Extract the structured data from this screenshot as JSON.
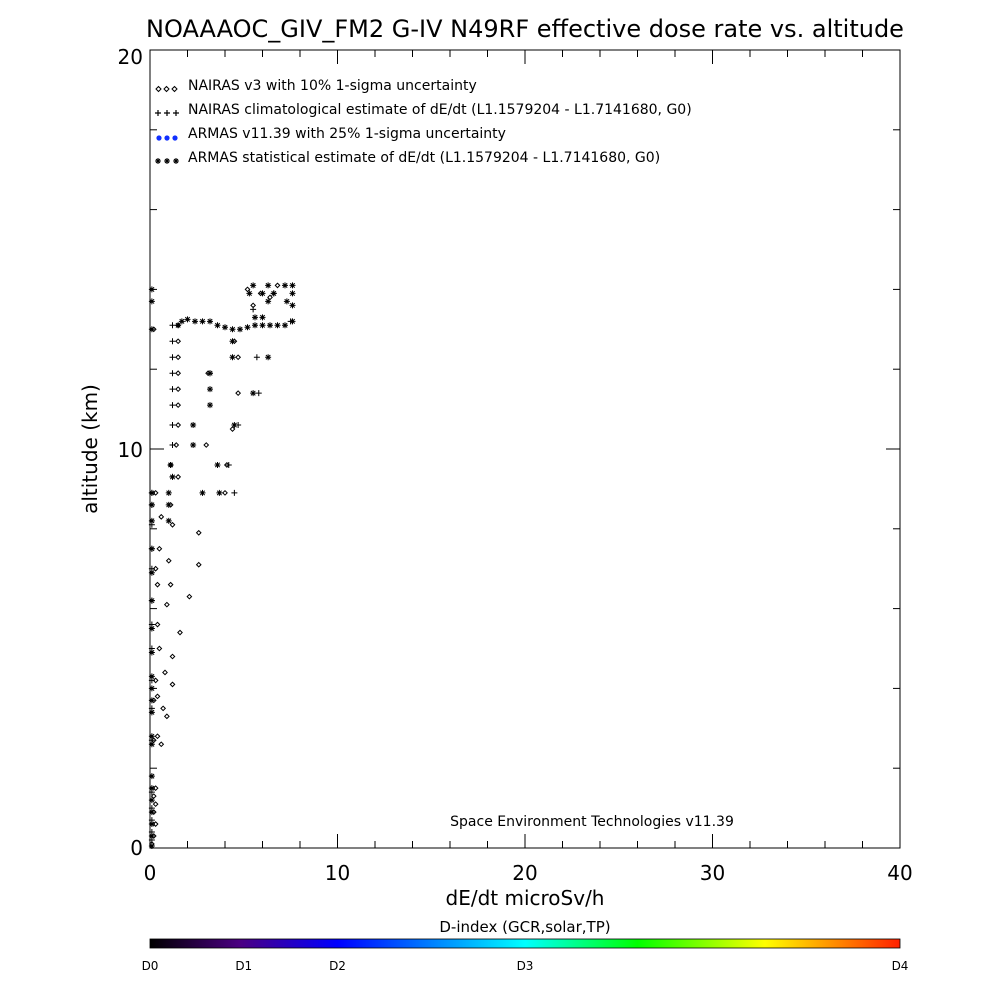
{
  "chart_data": {
    "type": "scatter",
    "title": "NOAAAOC_GIV_FM2 G-IV   N49RF  effective dose rate vs. altitude",
    "xlabel": "dE/dt microSv/h",
    "ylabel": "altitude (km)",
    "xlim": [
      0,
      40
    ],
    "ylim": [
      0,
      20
    ],
    "x_ticks": [
      "0",
      "10",
      "20",
      "30",
      "40"
    ],
    "y_ticks": [
      "0",
      "10",
      "20"
    ],
    "grid": false,
    "legend_position": "top-left",
    "credit": "Space Environment Technologies v11.39",
    "colorbar": {
      "title": "D-index (GCR,solar,TP)",
      "labels": [
        {
          "label": "D0",
          "value": 0
        },
        {
          "label": "D1",
          "value": 1
        },
        {
          "label": "D2",
          "value": 2
        },
        {
          "label": "D3",
          "value": 4
        },
        {
          "label": "D4",
          "value": 8
        }
      ],
      "range": [
        0,
        8
      ]
    },
    "series": [
      {
        "name": "NAIRAS v3 with 10% 1-sigma uncertainty",
        "marker": "diamond",
        "color": "#000000",
        "points": [
          [
            0.1,
            0.1
          ],
          [
            0.2,
            0.3
          ],
          [
            0.3,
            0.6
          ],
          [
            0.2,
            0.9
          ],
          [
            0.3,
            1.1
          ],
          [
            0.2,
            1.3
          ],
          [
            0.3,
            1.5
          ],
          [
            0.6,
            2.6
          ],
          [
            0.2,
            2.7
          ],
          [
            0.4,
            2.8
          ],
          [
            0.9,
            3.3
          ],
          [
            0.7,
            3.5
          ],
          [
            0.2,
            3.7
          ],
          [
            0.4,
            3.8
          ],
          [
            1.2,
            4.1
          ],
          [
            0.3,
            4.2
          ],
          [
            0.8,
            4.4
          ],
          [
            1.2,
            4.8
          ],
          [
            0.5,
            5.0
          ],
          [
            1.6,
            5.4
          ],
          [
            0.4,
            5.6
          ],
          [
            2.1,
            6.3
          ],
          [
            0.9,
            6.1
          ],
          [
            0.4,
            6.6
          ],
          [
            1.1,
            6.6
          ],
          [
            0.3,
            7.0
          ],
          [
            2.6,
            7.1
          ],
          [
            1.0,
            7.2
          ],
          [
            0.5,
            7.5
          ],
          [
            2.6,
            7.9
          ],
          [
            1.2,
            8.1
          ],
          [
            0.6,
            8.3
          ],
          [
            1.1,
            8.6
          ],
          [
            0.3,
            8.9
          ],
          [
            4.0,
            8.9
          ],
          [
            1.5,
            9.3
          ],
          [
            1.1,
            9.6
          ],
          [
            4.1,
            9.6
          ],
          [
            1.4,
            10.1
          ],
          [
            3.0,
            10.1
          ],
          [
            4.4,
            10.5
          ],
          [
            1.5,
            10.6
          ],
          [
            1.5,
            11.1
          ],
          [
            4.7,
            11.4
          ],
          [
            1.5,
            11.5
          ],
          [
            1.5,
            11.9
          ],
          [
            3.1,
            11.9
          ],
          [
            1.5,
            12.3
          ],
          [
            4.7,
            12.3
          ],
          [
            1.5,
            12.7
          ],
          [
            4.5,
            12.7
          ],
          [
            1.5,
            13.1
          ],
          [
            5.5,
            13.6
          ],
          [
            6.4,
            13.8
          ],
          [
            5.9,
            13.9
          ],
          [
            5.2,
            14.0
          ],
          [
            6.8,
            14.1
          ],
          [
            0.2,
            13.0
          ]
        ]
      },
      {
        "name": "NAIRAS climatological estimate of dE/dt (L1.1579204 - L1.7141680, G0)",
        "marker": "plus",
        "color": "#000000",
        "points": [
          [
            0.1,
            0.2
          ],
          [
            0.1,
            0.4
          ],
          [
            0.1,
            0.7
          ],
          [
            0.1,
            1.0
          ],
          [
            0.1,
            1.4
          ],
          [
            0.1,
            2.7
          ],
          [
            0.1,
            3.5
          ],
          [
            0.1,
            4.2
          ],
          [
            0.1,
            5.0
          ],
          [
            0.1,
            5.6
          ],
          [
            0.1,
            6.2
          ],
          [
            0.1,
            7.0
          ],
          [
            0.1,
            7.5
          ],
          [
            0.1,
            8.1
          ],
          [
            0.1,
            8.6
          ],
          [
            0.1,
            8.9
          ],
          [
            1.2,
            9.3
          ],
          [
            1.1,
            9.6
          ],
          [
            4.5,
            8.9
          ],
          [
            1.2,
            10.1
          ],
          [
            1.2,
            10.6
          ],
          [
            1.2,
            11.1
          ],
          [
            1.2,
            11.5
          ],
          [
            1.2,
            11.9
          ],
          [
            1.2,
            12.3
          ],
          [
            1.2,
            12.7
          ],
          [
            1.2,
            13.1
          ],
          [
            5.7,
            12.3
          ],
          [
            4.7,
            10.6
          ],
          [
            5.8,
            11.4
          ],
          [
            3.2,
            11.9
          ],
          [
            4.2,
            9.6
          ],
          [
            6.6,
            13.9
          ],
          [
            7.5,
            13.2
          ],
          [
            5.5,
            13.5
          ]
        ]
      },
      {
        "name": "ARMAS v11.39 with 25% 1-sigma uncertainty",
        "marker": "dot",
        "color": "#0000ff",
        "points": []
      },
      {
        "name": "ARMAS statistical estimate of dE/dt (L1.1579204 - L1.7141680, G0)",
        "marker": "asterisk",
        "color": "#000000",
        "points": [
          [
            0.1,
            0.05
          ],
          [
            0.1,
            0.3
          ],
          [
            0.1,
            0.6
          ],
          [
            0.1,
            0.9
          ],
          [
            0.1,
            1.2
          ],
          [
            0.1,
            1.5
          ],
          [
            0.1,
            1.8
          ],
          [
            0.1,
            2.6
          ],
          [
            0.1,
            2.8
          ],
          [
            0.1,
            3.4
          ],
          [
            0.1,
            3.7
          ],
          [
            0.1,
            4.0
          ],
          [
            0.1,
            4.3
          ],
          [
            0.1,
            4.9
          ],
          [
            0.1,
            5.5
          ],
          [
            0.1,
            6.2
          ],
          [
            0.1,
            6.9
          ],
          [
            0.1,
            7.5
          ],
          [
            0.1,
            8.2
          ],
          [
            0.1,
            8.6
          ],
          [
            0.1,
            8.9
          ],
          [
            1.0,
            8.2
          ],
          [
            1.0,
            8.6
          ],
          [
            1.0,
            8.9
          ],
          [
            1.2,
            9.3
          ],
          [
            1.1,
            9.6
          ],
          [
            2.8,
            8.9
          ],
          [
            3.7,
            8.9
          ],
          [
            3.6,
            9.6
          ],
          [
            2.3,
            10.1
          ],
          [
            2.3,
            10.6
          ],
          [
            4.5,
            10.6
          ],
          [
            3.2,
            11.1
          ],
          [
            3.2,
            11.5
          ],
          [
            5.5,
            11.4
          ],
          [
            3.2,
            11.9
          ],
          [
            4.4,
            12.3
          ],
          [
            6.3,
            12.3
          ],
          [
            4.4,
            12.7
          ],
          [
            1.5,
            13.1
          ],
          [
            1.7,
            13.2
          ],
          [
            2.0,
            13.25
          ],
          [
            2.4,
            13.2
          ],
          [
            2.8,
            13.2
          ],
          [
            3.2,
            13.2
          ],
          [
            3.6,
            13.1
          ],
          [
            4.0,
            13.05
          ],
          [
            4.4,
            13.0
          ],
          [
            4.8,
            13.0
          ],
          [
            5.2,
            13.05
          ],
          [
            5.6,
            13.1
          ],
          [
            6.0,
            13.1
          ],
          [
            6.4,
            13.1
          ],
          [
            6.8,
            13.1
          ],
          [
            7.2,
            13.1
          ],
          [
            7.6,
            13.2
          ],
          [
            5.6,
            13.3
          ],
          [
            6.0,
            13.3
          ],
          [
            5.3,
            13.9
          ],
          [
            6.0,
            13.9
          ],
          [
            6.6,
            13.9
          ],
          [
            7.6,
            13.9
          ],
          [
            5.5,
            14.1
          ],
          [
            6.3,
            14.1
          ],
          [
            7.2,
            14.1
          ],
          [
            7.6,
            14.1
          ],
          [
            7.6,
            13.6
          ],
          [
            7.3,
            13.7
          ],
          [
            6.3,
            13.7
          ],
          [
            0.1,
            13.0
          ],
          [
            0.1,
            13.7
          ],
          [
            0.1,
            14.0
          ]
        ]
      }
    ]
  }
}
